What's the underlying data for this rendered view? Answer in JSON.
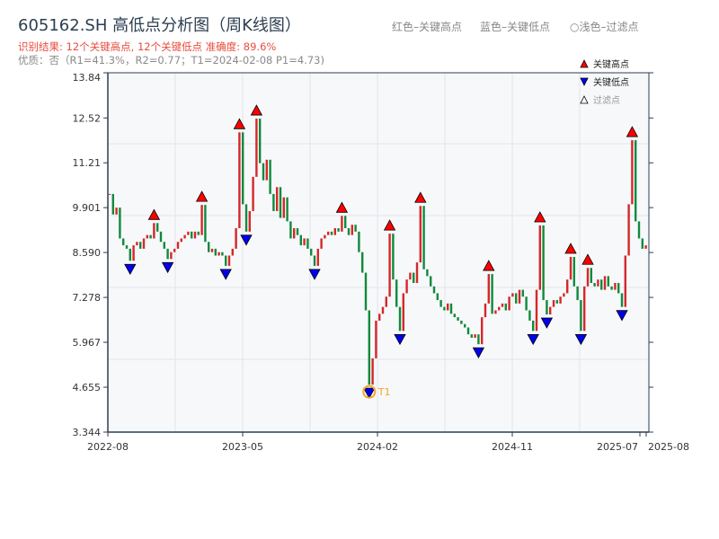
{
  "header": {
    "title": "605162.SH 高低点分析图（周K线图）",
    "result": "识别结果: 12个关键高点, 12个关键低点  准确度: 89.6%",
    "quality": "优质：否（R1=41.3%，R2=0.77；T1=2024-02-08 P1=4.73)",
    "legend_red": "红色–关键高点",
    "legend_blue": "蓝色–关键低点",
    "legend_light": "○浅色–过滤点"
  },
  "chart_data": {
    "type": "candlestick",
    "legend": {
      "placement": "top-right",
      "items": [
        "关键高点",
        "关键低点",
        "过滤点"
      ]
    },
    "ylim": [
      3.344,
      13.84
    ],
    "yticks": [
      "3.344",
      "4.655",
      "5.967",
      "7.278",
      "8.590",
      "9.901",
      "11.21",
      "12.52",
      "13.84"
    ],
    "xticks": [
      "2022-08",
      "2023-05",
      "2024-02",
      "2024-11",
      "2025-07",
      "2025-08"
    ],
    "grid": true,
    "colors": {
      "up": "#d62728",
      "down": "#108a3c",
      "high": "#ff0000",
      "low": "#0000ee",
      "t1": "#f5a623"
    },
    "closes": [
      10.3,
      9.7,
      9.9,
      9.0,
      8.8,
      8.7,
      8.35,
      8.8,
      8.9,
      8.7,
      9.0,
      9.1,
      9.0,
      9.45,
      9.2,
      8.9,
      8.7,
      8.4,
      8.6,
      8.7,
      8.9,
      9.0,
      9.1,
      9.2,
      9.0,
      9.2,
      9.1,
      9.98,
      8.9,
      8.6,
      8.7,
      8.5,
      8.6,
      8.5,
      8.2,
      8.5,
      8.7,
      9.3,
      12.1,
      10.0,
      9.2,
      9.8,
      10.8,
      12.5,
      11.2,
      10.7,
      11.3,
      10.3,
      9.8,
      10.5,
      9.6,
      10.2,
      9.5,
      9.0,
      9.3,
      9.1,
      8.8,
      9.0,
      8.7,
      8.5,
      8.2,
      8.7,
      9.0,
      9.1,
      9.2,
      9.1,
      9.3,
      9.2,
      9.66,
      9.3,
      9.1,
      9.4,
      9.2,
      8.6,
      8.0,
      6.9,
      4.73,
      5.5,
      6.6,
      6.8,
      7.0,
      7.3,
      9.14,
      7.8,
      7.0,
      6.3,
      7.4,
      7.8,
      8.0,
      7.7,
      8.3,
      9.95,
      8.1,
      7.9,
      7.6,
      7.4,
      7.2,
      7.0,
      6.9,
      7.1,
      6.8,
      6.7,
      6.6,
      6.5,
      6.4,
      6.2,
      6.1,
      6.2,
      5.91,
      6.7,
      7.1,
      7.96,
      6.8,
      6.9,
      7.0,
      7.1,
      6.9,
      7.3,
      7.4,
      7.1,
      7.5,
      7.3,
      6.9,
      6.6,
      6.3,
      7.5,
      9.38,
      7.2,
      6.78,
      7.0,
      7.2,
      7.1,
      7.3,
      7.4,
      7.8,
      8.46,
      7.6,
      7.2,
      6.3,
      7.6,
      8.14,
      7.7,
      7.6,
      7.8,
      7.5,
      7.9,
      7.6,
      7.5,
      7.7,
      7.4,
      7.0,
      8.5,
      10.0,
      11.87,
      9.5,
      9.0,
      8.7,
      8.8
    ],
    "key_highs": [
      13,
      27,
      38,
      43,
      68,
      82,
      91,
      111,
      126,
      135,
      140,
      153
    ],
    "key_lows": [
      6,
      17,
      34,
      40,
      60,
      76,
      85,
      108,
      124,
      128,
      138,
      150
    ],
    "t1": {
      "label": "T1",
      "index": 76,
      "price": 4.73
    }
  }
}
